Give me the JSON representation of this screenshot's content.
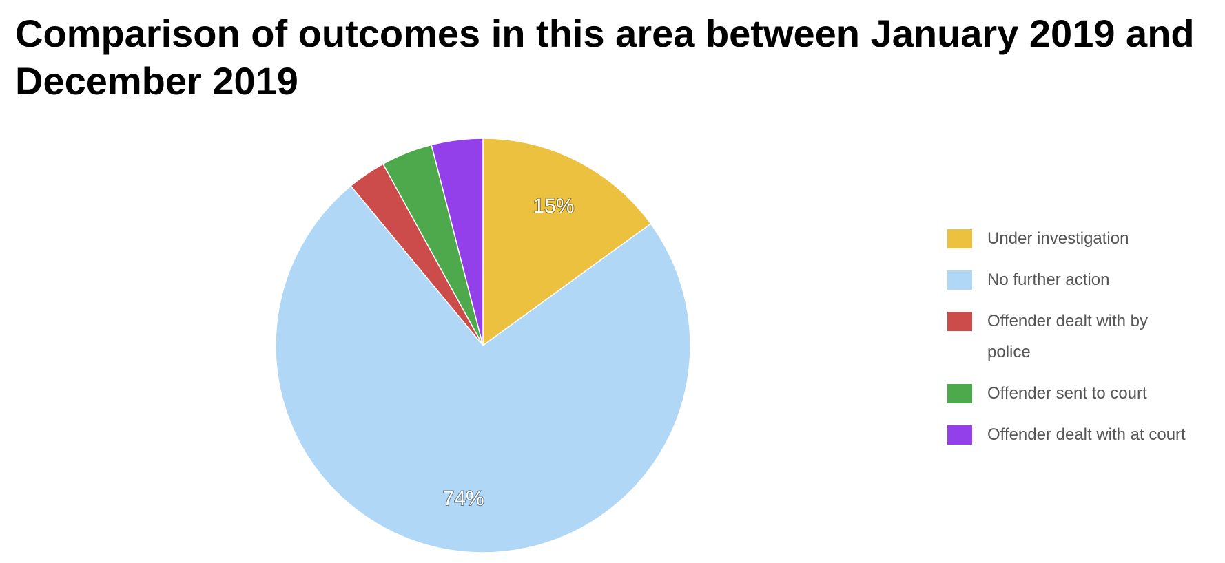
{
  "chart_data": {
    "type": "pie",
    "title": "Comparison of outcomes in this area between January 2019 and December 2019",
    "categories": [
      "Under investigation",
      "No further action",
      "Offender dealt with by police",
      "Offender sent to court",
      "Offender dealt with at court"
    ],
    "values": [
      15,
      74,
      3,
      4,
      4
    ],
    "value_labels": [
      "15%",
      "74%",
      null,
      null,
      null
    ],
    "colors": [
      "#ebc13f",
      "#b0d7f5",
      "#cc4c4b",
      "#4ea84c",
      "#9340ea"
    ],
    "legend": "right"
  }
}
